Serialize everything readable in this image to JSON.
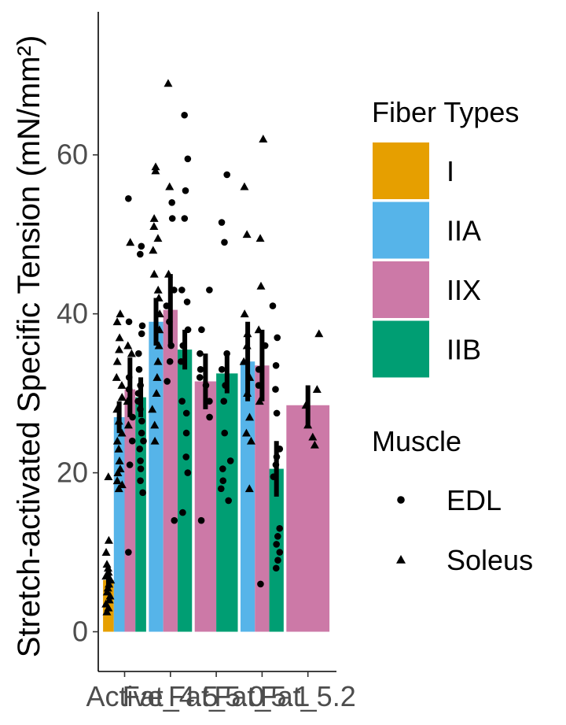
{
  "chart_data": {
    "type": "bar",
    "ylabel": "Stretch-activated Specific Tension (mN/mm²)",
    "xlabel": "",
    "ylim": [
      -5,
      78
    ],
    "yticks": [
      0,
      20,
      40,
      60
    ],
    "grid": false,
    "legend_position": "right",
    "categories": [
      "Active",
      "Fat_4.5",
      "Fat_5.0",
      "Fat_5.1",
      "Fat_5.2"
    ],
    "fiber_legend": {
      "title": "Fiber Types",
      "items": [
        {
          "label": "I",
          "color": "#E69F00"
        },
        {
          "label": "IIA",
          "color": "#56B4E9"
        },
        {
          "label": "IIX",
          "color": "#CC79A7"
        },
        {
          "label": "IIB",
          "color": "#009E73"
        }
      ]
    },
    "muscle_legend": {
      "title": "Muscle",
      "items": [
        {
          "label": "EDL",
          "shape": "circle"
        },
        {
          "label": "Soleus",
          "shape": "triangle"
        }
      ]
    },
    "groups": [
      {
        "category": "Active",
        "bars": [
          {
            "fiber": "I",
            "value": 6.5,
            "err_low": 5.5,
            "err_high": 8.0,
            "points": [
              {
                "y": 19.5,
                "s": "t"
              },
              {
                "y": 11.5,
                "s": "t"
              },
              {
                "y": 10,
                "s": "t"
              },
              {
                "y": 8.5,
                "s": "t"
              },
              {
                "y": 8,
                "s": "t"
              },
              {
                "y": 7.5,
                "s": "t"
              },
              {
                "y": 7,
                "s": "t"
              },
              {
                "y": 6.5,
                "s": "t"
              },
              {
                "y": 6,
                "s": "t"
              },
              {
                "y": 5.5,
                "s": "t"
              },
              {
                "y": 5,
                "s": "t"
              },
              {
                "y": 4.5,
                "s": "t"
              },
              {
                "y": 4,
                "s": "t"
              },
              {
                "y": 3.5,
                "s": "t"
              },
              {
                "y": 3,
                "s": "t"
              },
              {
                "y": 2.5,
                "s": "t"
              }
            ]
          },
          {
            "fiber": "IIA",
            "value": 27,
            "err_low": 25,
            "err_high": 29,
            "points": [
              {
                "y": 40,
                "s": "t"
              },
              {
                "y": 39,
                "s": "t"
              },
              {
                "y": 37,
                "s": "t"
              },
              {
                "y": 35.5,
                "s": "t"
              },
              {
                "y": 34,
                "s": "t"
              },
              {
                "y": 32,
                "s": "t"
              },
              {
                "y": 31,
                "s": "t"
              },
              {
                "y": 29.5,
                "s": "t"
              },
              {
                "y": 28,
                "s": "t"
              },
              {
                "y": 26.5,
                "s": "t"
              },
              {
                "y": 25,
                "s": "t"
              },
              {
                "y": 24,
                "s": "t"
              },
              {
                "y": 23,
                "s": "t"
              },
              {
                "y": 21.5,
                "s": "t"
              },
              {
                "y": 20.5,
                "s": "t"
              },
              {
                "y": 20,
                "s": "t"
              },
              {
                "y": 19,
                "s": "t"
              },
              {
                "y": 18.5,
                "s": "t"
              },
              {
                "y": 18,
                "s": "t"
              }
            ]
          },
          {
            "fiber": "IIX",
            "value": 30.5,
            "err_low": 27,
            "err_high": 34.5,
            "points": [
              {
                "y": 54.5,
                "s": "c"
              },
              {
                "y": 49,
                "s": "t"
              },
              {
                "y": 39,
                "s": "c"
              },
              {
                "y": 36,
                "s": "t"
              },
              {
                "y": 35,
                "s": "t"
              },
              {
                "y": 32,
                "s": "c"
              },
              {
                "y": 30.5,
                "s": "c"
              },
              {
                "y": 29,
                "s": "t"
              },
              {
                "y": 27,
                "s": "c"
              },
              {
                "y": 26,
                "s": "t"
              },
              {
                "y": 24,
                "s": "c"
              },
              {
                "y": 21,
                "s": "c"
              },
              {
                "y": 10,
                "s": "c"
              }
            ]
          },
          {
            "fiber": "IIB",
            "value": 29.5,
            "err_low": 27,
            "err_high": 32,
            "points": [
              {
                "y": 48.5,
                "s": "c"
              },
              {
                "y": 47.5,
                "s": "c"
              },
              {
                "y": 38.5,
                "s": "c"
              },
              {
                "y": 37.5,
                "s": "c"
              },
              {
                "y": 35,
                "s": "c"
              },
              {
                "y": 33,
                "s": "c"
              },
              {
                "y": 31,
                "s": "c"
              },
              {
                "y": 30,
                "s": "c"
              },
              {
                "y": 29,
                "s": "c"
              },
              {
                "y": 28,
                "s": "c"
              },
              {
                "y": 26.5,
                "s": "c"
              },
              {
                "y": 25,
                "s": "c"
              },
              {
                "y": 24,
                "s": "c"
              },
              {
                "y": 23,
                "s": "c"
              },
              {
                "y": 21.5,
                "s": "c"
              },
              {
                "y": 20.5,
                "s": "c"
              },
              {
                "y": 19,
                "s": "c"
              },
              {
                "y": 17.5,
                "s": "c"
              }
            ]
          }
        ]
      },
      {
        "category": "Fat_4.5",
        "bars": [
          {
            "fiber": "IIA",
            "value": 39,
            "err_low": 36,
            "err_high": 42,
            "points": [
              {
                "y": 58.5,
                "s": "t"
              },
              {
                "y": 58,
                "s": "t"
              },
              {
                "y": 52,
                "s": "t"
              },
              {
                "y": 51,
                "s": "t"
              },
              {
                "y": 49.5,
                "s": "t"
              },
              {
                "y": 48,
                "s": "t"
              },
              {
                "y": 45,
                "s": "t"
              },
              {
                "y": 43,
                "s": "t"
              },
              {
                "y": 42,
                "s": "t"
              },
              {
                "y": 40,
                "s": "t"
              },
              {
                "y": 38,
                "s": "t"
              },
              {
                "y": 36,
                "s": "t"
              },
              {
                "y": 34,
                "s": "t"
              },
              {
                "y": 32,
                "s": "t"
              },
              {
                "y": 30,
                "s": "t"
              },
              {
                "y": 28,
                "s": "t"
              },
              {
                "y": 26,
                "s": "t"
              },
              {
                "y": 24,
                "s": "t"
              }
            ]
          },
          {
            "fiber": "IIX",
            "value": 40.5,
            "err_low": 36,
            "err_high": 45,
            "points": [
              {
                "y": 69,
                "s": "t"
              },
              {
                "y": 56,
                "s": "t"
              },
              {
                "y": 54,
                "s": "c"
              },
              {
                "y": 52,
                "s": "c"
              },
              {
                "y": 45,
                "s": "t"
              },
              {
                "y": 43,
                "s": "c"
              },
              {
                "y": 41,
                "s": "c"
              },
              {
                "y": 39,
                "s": "c"
              },
              {
                "y": 36,
                "s": "c"
              },
              {
                "y": 34,
                "s": "c"
              },
              {
                "y": 31.5,
                "s": "c"
              },
              {
                "y": 14,
                "s": "c"
              }
            ]
          },
          {
            "fiber": "IIB",
            "value": 35.5,
            "err_low": 33,
            "err_high": 38,
            "points": [
              {
                "y": 65,
                "s": "c"
              },
              {
                "y": 59.5,
                "s": "c"
              },
              {
                "y": 55.5,
                "s": "c"
              },
              {
                "y": 52,
                "s": "c"
              },
              {
                "y": 43,
                "s": "c"
              },
              {
                "y": 41.5,
                "s": "c"
              },
              {
                "y": 38,
                "s": "c"
              },
              {
                "y": 36,
                "s": "c"
              },
              {
                "y": 34,
                "s": "c"
              },
              {
                "y": 29,
                "s": "c"
              },
              {
                "y": 27.5,
                "s": "c"
              },
              {
                "y": 25,
                "s": "c"
              },
              {
                "y": 22,
                "s": "c"
              },
              {
                "y": 20,
                "s": "c"
              },
              {
                "y": 15,
                "s": "c"
              }
            ]
          }
        ]
      },
      {
        "category": "Fat_5.0",
        "bars": [
          {
            "fiber": "IIX",
            "value": 31.5,
            "err_low": 28,
            "err_high": 35,
            "points": [
              {
                "y": 43,
                "s": "c"
              },
              {
                "y": 38,
                "s": "c"
              },
              {
                "y": 35,
                "s": "c"
              },
              {
                "y": 33,
                "s": "c"
              },
              {
                "y": 32,
                "s": "c"
              },
              {
                "y": 31,
                "s": "c"
              },
              {
                "y": 29,
                "s": "c"
              },
              {
                "y": 27,
                "s": "c"
              },
              {
                "y": 14,
                "s": "c"
              }
            ]
          },
          {
            "fiber": "IIB",
            "value": 32.5,
            "err_low": 30,
            "err_high": 35,
            "points": [
              {
                "y": 57.5,
                "s": "c"
              },
              {
                "y": 51.5,
                "s": "c"
              },
              {
                "y": 49,
                "s": "c"
              },
              {
                "y": 35,
                "s": "c"
              },
              {
                "y": 33,
                "s": "c"
              },
              {
                "y": 31,
                "s": "c"
              },
              {
                "y": 29,
                "s": "c"
              },
              {
                "y": 25,
                "s": "c"
              },
              {
                "y": 21.5,
                "s": "c"
              },
              {
                "y": 20.5,
                "s": "c"
              },
              {
                "y": 19,
                "s": "c"
              },
              {
                "y": 18,
                "s": "c"
              },
              {
                "y": 16.5,
                "s": "c"
              }
            ]
          }
        ]
      },
      {
        "category": "Fat_5.1",
        "bars": [
          {
            "fiber": "IIA",
            "value": 34,
            "err_low": 29,
            "err_high": 39,
            "points": [
              {
                "y": 56,
                "s": "t"
              },
              {
                "y": 50,
                "s": "t"
              },
              {
                "y": 40,
                "s": "t"
              },
              {
                "y": 37.5,
                "s": "t"
              },
              {
                "y": 36,
                "s": "t"
              },
              {
                "y": 34,
                "s": "t"
              },
              {
                "y": 32,
                "s": "t"
              },
              {
                "y": 30,
                "s": "t"
              },
              {
                "y": 27,
                "s": "t"
              },
              {
                "y": 25,
                "s": "t"
              },
              {
                "y": 24,
                "s": "t"
              },
              {
                "y": 18,
                "s": "t"
              }
            ]
          },
          {
            "fiber": "IIX",
            "value": 33.5,
            "err_low": 29,
            "err_high": 38,
            "points": [
              {
                "y": 62,
                "s": "t"
              },
              {
                "y": 49.5,
                "s": "t"
              },
              {
                "y": 43.5,
                "s": "t"
              },
              {
                "y": 38,
                "s": "t"
              },
              {
                "y": 36,
                "s": "c"
              },
              {
                "y": 33,
                "s": "c"
              },
              {
                "y": 31,
                "s": "c"
              },
              {
                "y": 29,
                "s": "t"
              },
              {
                "y": 6,
                "s": "c"
              }
            ]
          },
          {
            "fiber": "IIB",
            "value": 20.5,
            "err_low": 17,
            "err_high": 24,
            "points": [
              {
                "y": 41,
                "s": "c"
              },
              {
                "y": 37,
                "s": "c"
              },
              {
                "y": 33.5,
                "s": "c"
              },
              {
                "y": 30.5,
                "s": "c"
              },
              {
                "y": 27.5,
                "s": "c"
              },
              {
                "y": 23,
                "s": "c"
              },
              {
                "y": 22,
                "s": "c"
              },
              {
                "y": 21,
                "s": "c"
              },
              {
                "y": 19.5,
                "s": "c"
              },
              {
                "y": 13,
                "s": "c"
              },
              {
                "y": 12,
                "s": "c"
              },
              {
                "y": 11,
                "s": "c"
              },
              {
                "y": 10,
                "s": "c"
              },
              {
                "y": 9,
                "s": "c"
              },
              {
                "y": 8,
                "s": "c"
              }
            ]
          }
        ]
      },
      {
        "category": "Fat_5.2",
        "bars": [
          {
            "fiber": "IIX",
            "value": 28.5,
            "err_low": 26,
            "err_high": 31,
            "points": [
              {
                "y": 37.5,
                "s": "t"
              },
              {
                "y": 30.5,
                "s": "t"
              },
              {
                "y": 28.5,
                "s": "t"
              },
              {
                "y": 26,
                "s": "t"
              },
              {
                "y": 24.5,
                "s": "t"
              },
              {
                "y": 23.5,
                "s": "t"
              }
            ]
          }
        ]
      }
    ]
  }
}
